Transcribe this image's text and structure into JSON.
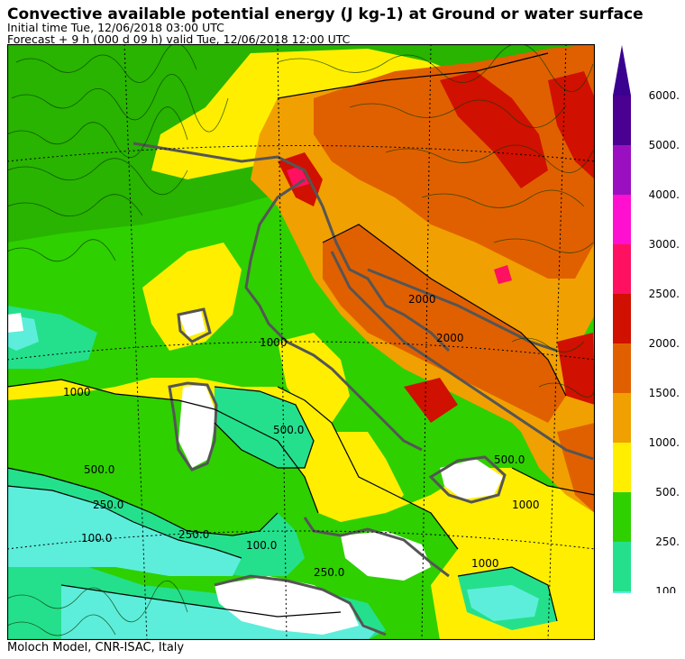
{
  "header": {
    "title": "Convective available potential energy (J kg-1) at Ground or water surface",
    "initial_time": "Initial time  Tue, 12/06/2018  03:00 UTC",
    "forecast": "Forecast  +   9 h  (000 d 09 h)  valid Tue, 12/06/2018 12:00 UTC"
  },
  "footer": {
    "credit": "Moloch Model, CNR-ISAC, Italy"
  },
  "legend": {
    "levels": [
      "100.",
      "250.",
      "500.",
      "1000.",
      "1500.",
      "2000.",
      "2500.",
      "3000.",
      "4000.",
      "5000.",
      "6000."
    ],
    "colors": [
      "#5ceedb",
      "#24e08c",
      "#2ed000",
      "#ffee00",
      "#f0a000",
      "#e06000",
      "#d01000",
      "#ff1060",
      "#ff10d0",
      "#9a10c0",
      "#4a0090"
    ],
    "arrow_color": "#3a0090"
  },
  "map": {
    "contour_labels": [
      "1000",
      "1000",
      "500.0",
      "500.0",
      "250.0",
      "250.0",
      "100.0",
      "100.0",
      "2000",
      "2000",
      "1000",
      "1000",
      "500.0",
      "250.0"
    ]
  }
}
